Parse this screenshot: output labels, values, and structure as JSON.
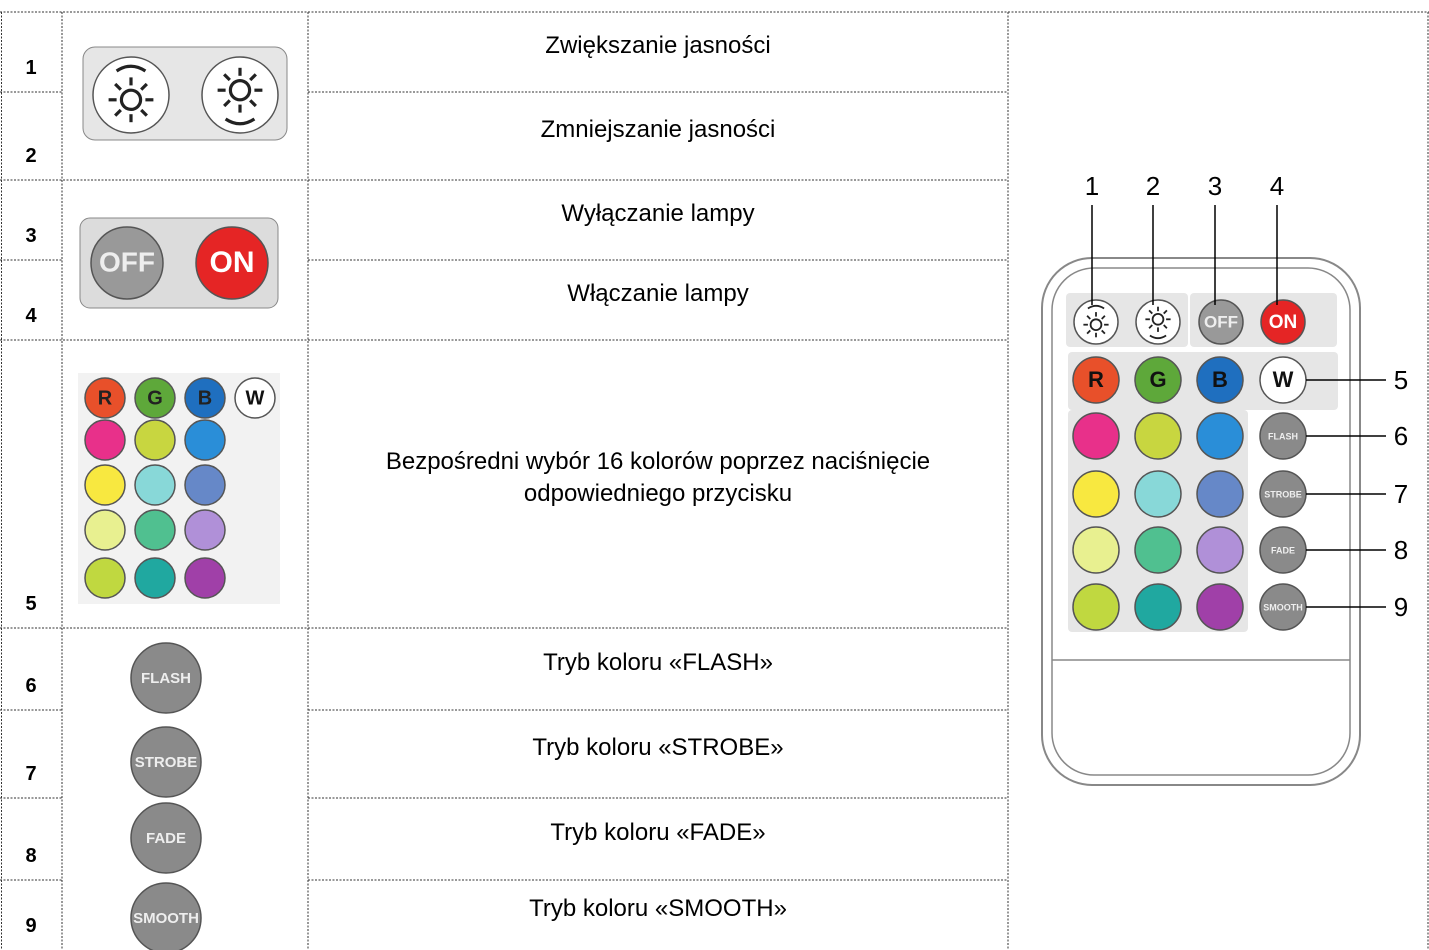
{
  "table": {
    "rows": [
      {
        "number": 1,
        "description": "Zwiększanie jasności"
      },
      {
        "number": 2,
        "description": "Zmniejszanie jasności"
      },
      {
        "number": 3,
        "description": "Wyłączanie lampy"
      },
      {
        "number": 4,
        "description": "Włączanie lampy"
      },
      {
        "number": 5,
        "description": "Bezpośredni wybór 16 kolorów poprzez naciśnięcie odpowiedniego przycisku"
      },
      {
        "number": 6,
        "description": "Tryb koloru «FLASH»"
      },
      {
        "number": 7,
        "description": "Tryb koloru «STROBE»"
      },
      {
        "number": 8,
        "description": "Tryb koloru «FADE»"
      },
      {
        "number": 9,
        "description": "Tryb koloru «SMOOTH»"
      }
    ]
  },
  "buttons": {
    "off": "OFF",
    "on": "ON",
    "r": "R",
    "g": "G",
    "b": "B",
    "w": "W",
    "flash": "FLASH",
    "strobe": "STROBE",
    "fade": "FADE",
    "smooth": "SMOOTH"
  },
  "remote": {
    "callouts": [
      1,
      2,
      3,
      4,
      5,
      6,
      7,
      8,
      9
    ]
  }
}
